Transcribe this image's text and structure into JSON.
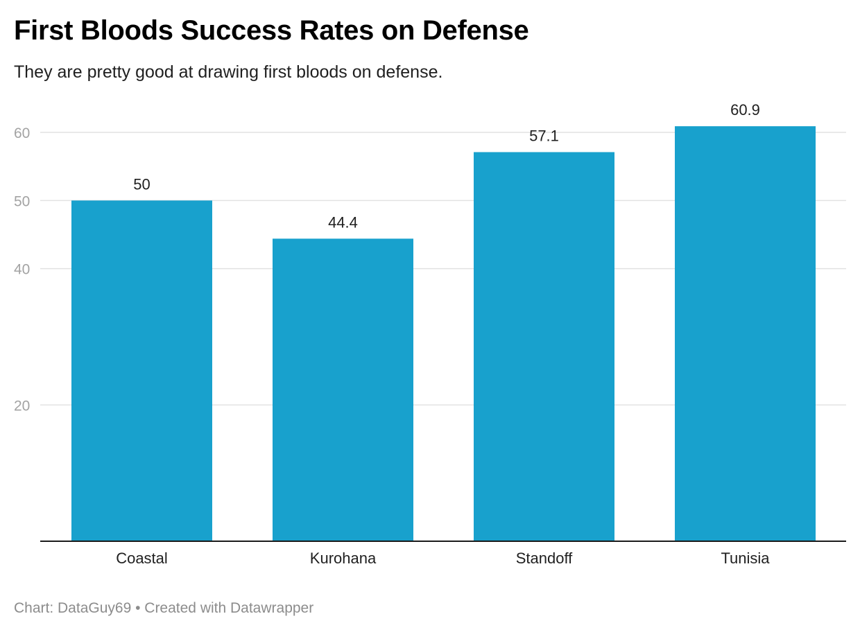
{
  "header": {
    "title": "First Bloods Success Rates on Defense",
    "subtitle": "They are pretty good at drawing first bloods on defense."
  },
  "footer": {
    "credit": "Chart: DataGuy69 • Created with Datawrapper"
  },
  "colors": {
    "bar": "#18a1cd",
    "grid": "#e2e2e2",
    "baseline": "#1a1a1a"
  },
  "chart_data": {
    "type": "bar",
    "categories": [
      "Coastal",
      "Kurohana",
      "Standoff",
      "Tunisia"
    ],
    "values": [
      50,
      44.4,
      57.1,
      60.9
    ],
    "value_labels": [
      "50",
      "44.4",
      "57.1",
      "60.9"
    ],
    "ylim": [
      0,
      60
    ],
    "yticks": [
      20,
      40,
      50,
      60
    ],
    "ytick_labels": [
      "20",
      "40",
      "50",
      "60"
    ],
    "grid": true,
    "legend": "none"
  }
}
